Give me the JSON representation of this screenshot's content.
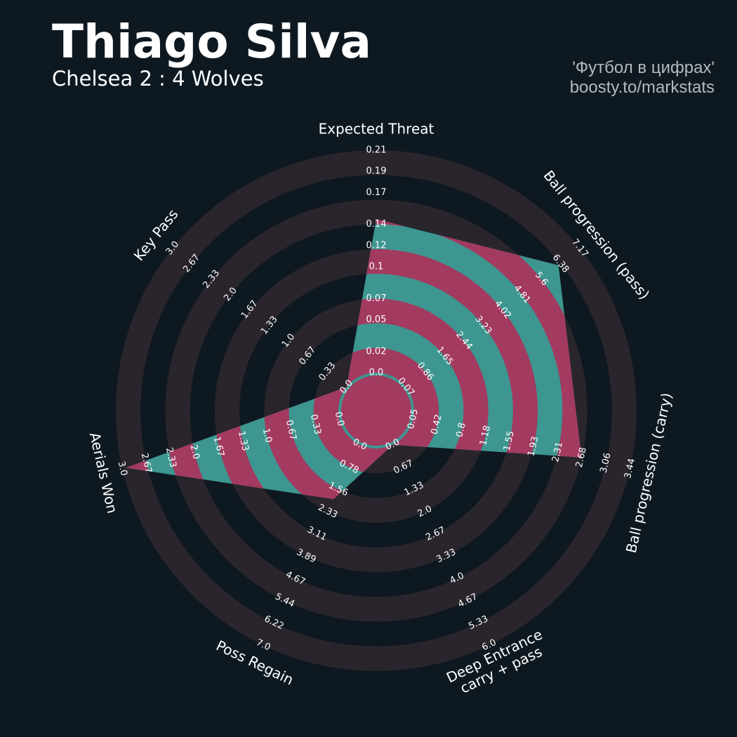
{
  "chart_data": {
    "type": "radar",
    "title": "Thiago Silva",
    "subtitle": "Chelsea 2 : 4 Wolves",
    "credits": [
      "'Футбол в цифрах'",
      "boosty.to/markstats"
    ],
    "categories": [
      "Expected Threat",
      "Ball progression (pass)",
      "Ball progression (carry)",
      "Deep Entrance\ncarry + pass",
      "Poss Regain",
      "Aerials Won",
      "Key Pass"
    ],
    "ranges": [
      [
        0,
        0.21
      ],
      [
        0.07,
        7.17
      ],
      [
        0.05,
        3.44
      ],
      [
        0,
        6
      ],
      [
        0,
        7
      ],
      [
        0,
        3
      ],
      [
        0,
        3
      ]
    ],
    "ticks": [
      [
        {
          "value": 0,
          "label": "0.0"
        },
        0.02,
        0.05,
        0.07,
        0.1,
        0.12,
        0.14,
        0.17,
        0.19,
        0.21
      ],
      [
        0.07,
        0.86,
        1.65,
        2.44,
        3.23,
        4.02,
        4.81,
        5.6,
        6.38,
        7.17
      ],
      [
        0.05,
        0.42,
        0.8,
        1.18,
        1.55,
        1.93,
        2.31,
        2.68,
        3.06,
        3.44
      ],
      [
        {
          "value": 0,
          "label": "0.0"
        },
        0.67,
        1.33,
        {
          "value": 2,
          "label": "2.0"
        },
        2.67,
        3.33,
        {
          "value": 4,
          "label": "4.0"
        },
        4.67,
        5.33,
        {
          "value": 6,
          "label": "6.0"
        }
      ],
      [
        {
          "value": 0,
          "label": "0.0"
        },
        0.78,
        1.56,
        2.33,
        3.11,
        3.89,
        4.67,
        5.44,
        6.22,
        {
          "value": 7,
          "label": "7.0"
        }
      ],
      [
        {
          "value": 0,
          "label": "0.0"
        },
        0.33,
        0.67,
        {
          "value": 1,
          "label": "1.0"
        },
        1.33,
        1.67,
        {
          "value": 2,
          "label": "2.0"
        },
        2.33,
        2.67,
        {
          "value": 3,
          "label": "3.0"
        }
      ],
      [
        {
          "value": 0,
          "label": "0.0"
        },
        0.33,
        0.67,
        {
          "value": 1,
          "label": "1.0"
        },
        1.33,
        1.67,
        {
          "value": 2,
          "label": "2.0"
        },
        2.33,
        2.67,
        {
          "value": 3,
          "label": "3.0"
        }
      ]
    ],
    "values": [
      0.145,
      6.3,
      2.68,
      0,
      1.9,
      2.95,
      0
    ],
    "color": "#3d9690",
    "alt_color": "#a33a60",
    "ring_color": "#2a252c"
  }
}
